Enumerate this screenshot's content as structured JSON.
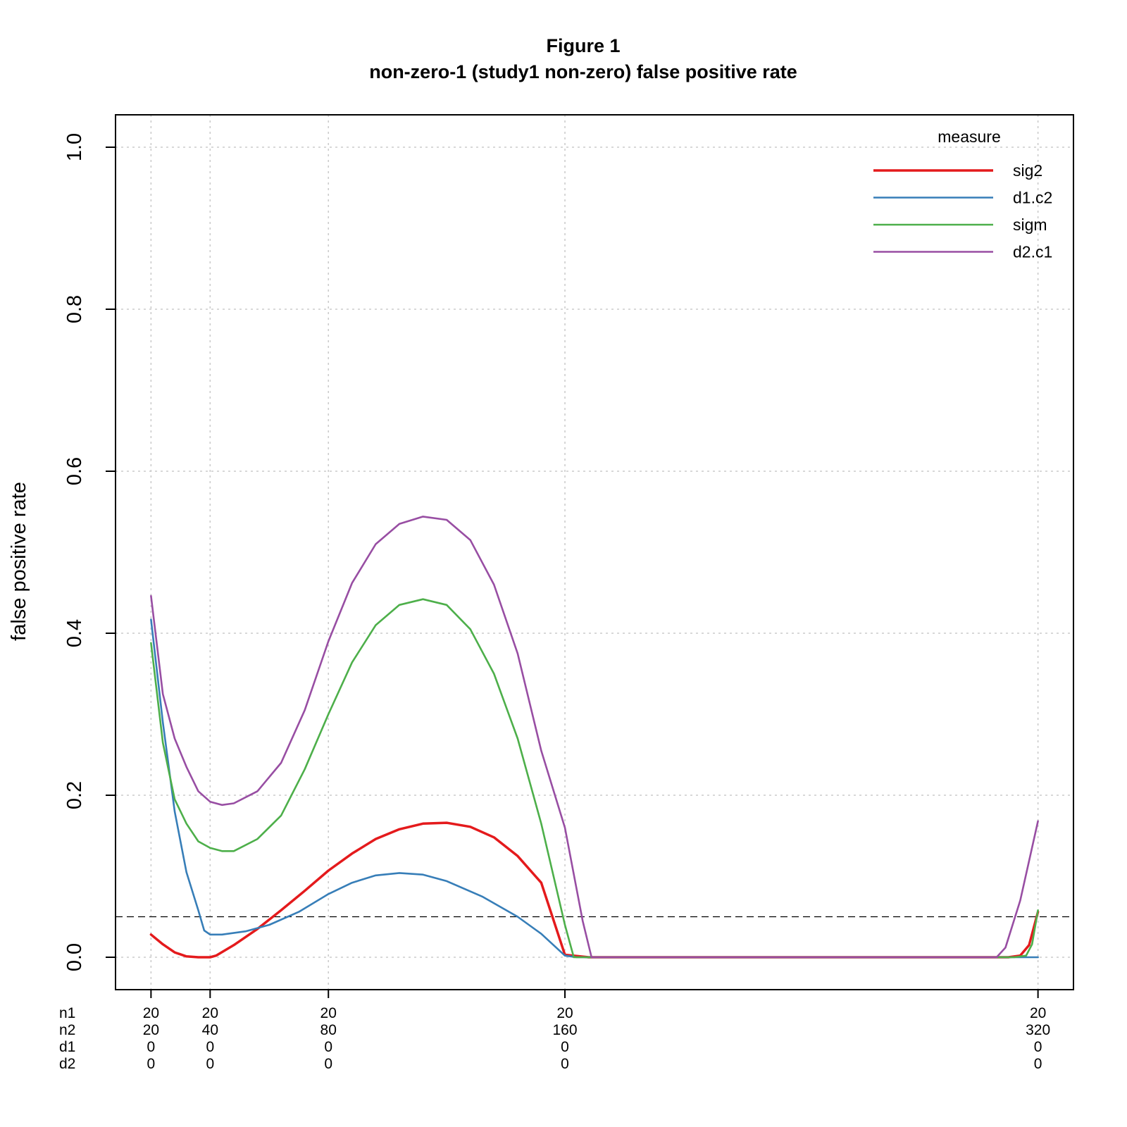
{
  "chart_data": {
    "type": "line",
    "title": "Figure 1",
    "subtitle": "non-zero-1 (study1 non-zero) false positive rate",
    "ylabel": "false positive rate",
    "xlabel": "",
    "ylim": [
      -0.04,
      1.04
    ],
    "y_ticks": [
      "0.0",
      "0.2",
      "0.4",
      "0.6",
      "0.8",
      "1.0"
    ],
    "y_tick_values": [
      0.0,
      0.2,
      0.4,
      0.6,
      0.8,
      1.0
    ],
    "grid": true,
    "reference_line": 0.05,
    "legend": {
      "title": "measure",
      "position": "top-right"
    },
    "x_row_labels": [
      "n1",
      "n2",
      "d1",
      "d2"
    ],
    "x_groups": [
      {
        "x": 1,
        "n1": "20",
        "n2": "20",
        "d1": "0",
        "d2": "0"
      },
      {
        "x": 2,
        "n1": "20",
        "n2": "40",
        "d1": "0",
        "d2": "0"
      },
      {
        "x": 4,
        "n1": "20",
        "n2": "80",
        "d1": "0",
        "d2": "0"
      },
      {
        "x": 8,
        "n1": "20",
        "n2": "160",
        "d1": "0",
        "d2": "0"
      },
      {
        "x": 16,
        "n1": "20",
        "n2": "320",
        "d1": "0",
        "d2": "0"
      }
    ],
    "xlim": [
      0.4,
      16.6
    ],
    "series": [
      {
        "name": "sig2",
        "color": "#e41a1c",
        "width": 3.5,
        "points": [
          [
            1,
            0.028
          ],
          [
            1.2,
            0.016
          ],
          [
            1.4,
            0.006
          ],
          [
            1.6,
            0.001
          ],
          [
            1.8,
            0
          ],
          [
            2,
            0
          ],
          [
            2.1,
            0.002
          ],
          [
            2.4,
            0.015
          ],
          [
            2.8,
            0.035
          ],
          [
            3.2,
            0.058
          ],
          [
            3.6,
            0.082
          ],
          [
            4,
            0.107
          ],
          [
            4.4,
            0.128
          ],
          [
            4.8,
            0.146
          ],
          [
            5.2,
            0.158
          ],
          [
            5.6,
            0.165
          ],
          [
            6,
            0.166
          ],
          [
            6.4,
            0.161
          ],
          [
            6.8,
            0.148
          ],
          [
            7.2,
            0.125
          ],
          [
            7.6,
            0.092
          ],
          [
            8,
            0.003
          ],
          [
            8.4,
            0
          ],
          [
            15.5,
            0
          ],
          [
            15.7,
            0.002
          ],
          [
            15.85,
            0.015
          ],
          [
            16,
            0.056
          ]
        ]
      },
      {
        "name": "d1.c2",
        "color": "#377eb8",
        "width": 2.6,
        "points": [
          [
            1,
            0.417
          ],
          [
            1.2,
            0.29
          ],
          [
            1.4,
            0.18
          ],
          [
            1.6,
            0.105
          ],
          [
            1.8,
            0.058
          ],
          [
            1.9,
            0.033
          ],
          [
            2,
            0.028
          ],
          [
            2.2,
            0.028
          ],
          [
            2.6,
            0.032
          ],
          [
            3,
            0.04
          ],
          [
            3.5,
            0.056
          ],
          [
            4,
            0.078
          ],
          [
            4.4,
            0.092
          ],
          [
            4.8,
            0.101
          ],
          [
            5.2,
            0.104
          ],
          [
            5.6,
            0.102
          ],
          [
            6,
            0.094
          ],
          [
            6.6,
            0.075
          ],
          [
            7.2,
            0.05
          ],
          [
            7.6,
            0.029
          ],
          [
            8,
            0.002
          ],
          [
            8.2,
            0
          ],
          [
            16,
            0
          ]
        ]
      },
      {
        "name": "sigm",
        "color": "#4daf4a",
        "width": 2.6,
        "points": [
          [
            1,
            0.388
          ],
          [
            1.2,
            0.265
          ],
          [
            1.4,
            0.195
          ],
          [
            1.6,
            0.165
          ],
          [
            1.8,
            0.143
          ],
          [
            2,
            0.135
          ],
          [
            2.2,
            0.131
          ],
          [
            2.4,
            0.131
          ],
          [
            2.8,
            0.146
          ],
          [
            3.2,
            0.175
          ],
          [
            3.6,
            0.232
          ],
          [
            4,
            0.3
          ],
          [
            4.4,
            0.364
          ],
          [
            4.8,
            0.41
          ],
          [
            5.2,
            0.435
          ],
          [
            5.6,
            0.442
          ],
          [
            6,
            0.435
          ],
          [
            6.4,
            0.405
          ],
          [
            6.8,
            0.35
          ],
          [
            7.2,
            0.27
          ],
          [
            7.6,
            0.165
          ],
          [
            8,
            0.04
          ],
          [
            8.15,
            0
          ],
          [
            15.6,
            0
          ],
          [
            15.8,
            0.002
          ],
          [
            15.9,
            0.016
          ],
          [
            16,
            0.058
          ]
        ]
      },
      {
        "name": "d2.c1",
        "color": "#984ea3",
        "width": 2.6,
        "points": [
          [
            1,
            0.446
          ],
          [
            1.2,
            0.325
          ],
          [
            1.4,
            0.27
          ],
          [
            1.6,
            0.235
          ],
          [
            1.8,
            0.205
          ],
          [
            2,
            0.192
          ],
          [
            2.2,
            0.188
          ],
          [
            2.4,
            0.19
          ],
          [
            2.8,
            0.205
          ],
          [
            3.2,
            0.24
          ],
          [
            3.6,
            0.305
          ],
          [
            4,
            0.39
          ],
          [
            4.4,
            0.462
          ],
          [
            4.8,
            0.51
          ],
          [
            5.2,
            0.535
          ],
          [
            5.6,
            0.544
          ],
          [
            6,
            0.54
          ],
          [
            6.4,
            0.515
          ],
          [
            6.8,
            0.46
          ],
          [
            7.2,
            0.375
          ],
          [
            7.6,
            0.255
          ],
          [
            8,
            0.16
          ],
          [
            8.3,
            0.045
          ],
          [
            8.45,
            0
          ],
          [
            15.3,
            0
          ],
          [
            15.45,
            0.012
          ],
          [
            15.7,
            0.07
          ],
          [
            16,
            0.168
          ]
        ]
      }
    ]
  }
}
